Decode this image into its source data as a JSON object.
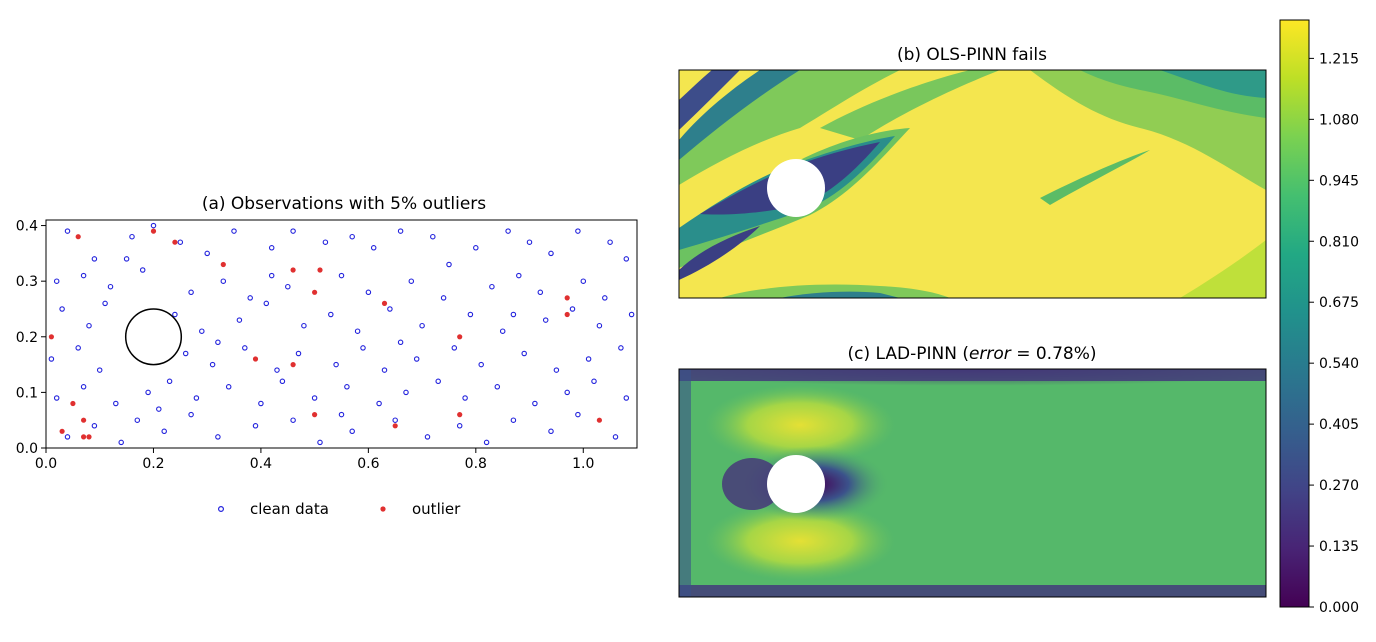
{
  "chart_data": [
    {
      "type": "scatter",
      "title": "(a) Observations with 5% outliers",
      "xlim": [
        0.0,
        1.1
      ],
      "ylim": [
        0.0,
        0.41
      ],
      "xticks": [
        "0.0",
        "0.2",
        "0.4",
        "0.6",
        "0.8",
        "1.0"
      ],
      "yticks": [
        "0.0",
        "0.1",
        "0.2",
        "0.3",
        "0.4"
      ],
      "xlabel": "",
      "ylabel": "",
      "legend_position": "bottom",
      "series": [
        {
          "name": "clean data",
          "marker": "open-circle",
          "color": "#2222dd",
          "points": [
            [
              0.04,
              0.39
            ],
            [
              0.09,
              0.34
            ],
            [
              0.16,
              0.38
            ],
            [
              0.2,
              0.4
            ],
            [
              0.25,
              0.37
            ],
            [
              0.3,
              0.35
            ],
            [
              0.35,
              0.39
            ],
            [
              0.42,
              0.36
            ],
            [
              0.46,
              0.39
            ],
            [
              0.52,
              0.37
            ],
            [
              0.57,
              0.38
            ],
            [
              0.61,
              0.36
            ],
            [
              0.66,
              0.39
            ],
            [
              0.72,
              0.38
            ],
            [
              0.8,
              0.36
            ],
            [
              0.86,
              0.39
            ],
            [
              0.9,
              0.37
            ],
            [
              0.94,
              0.35
            ],
            [
              0.99,
              0.39
            ],
            [
              1.05,
              0.37
            ],
            [
              1.08,
              0.34
            ],
            [
              0.02,
              0.3
            ],
            [
              0.07,
              0.31
            ],
            [
              0.12,
              0.29
            ],
            [
              0.18,
              0.32
            ],
            [
              0.27,
              0.28
            ],
            [
              0.33,
              0.3
            ],
            [
              0.38,
              0.27
            ],
            [
              0.45,
              0.29
            ],
            [
              0.55,
              0.31
            ],
            [
              0.6,
              0.28
            ],
            [
              0.68,
              0.3
            ],
            [
              0.74,
              0.27
            ],
            [
              0.83,
              0.29
            ],
            [
              0.88,
              0.31
            ],
            [
              0.92,
              0.28
            ],
            [
              1.0,
              0.3
            ],
            [
              1.04,
              0.27
            ],
            [
              0.03,
              0.25
            ],
            [
              0.08,
              0.22
            ],
            [
              0.11,
              0.26
            ],
            [
              0.24,
              0.24
            ],
            [
              0.29,
              0.21
            ],
            [
              0.36,
              0.23
            ],
            [
              0.41,
              0.26
            ],
            [
              0.48,
              0.22
            ],
            [
              0.53,
              0.24
            ],
            [
              0.58,
              0.21
            ],
            [
              0.64,
              0.25
            ],
            [
              0.7,
              0.22
            ],
            [
              0.79,
              0.24
            ],
            [
              0.85,
              0.21
            ],
            [
              0.93,
              0.23
            ],
            [
              0.98,
              0.25
            ],
            [
              1.03,
              0.22
            ],
            [
              1.09,
              0.24
            ],
            [
              0.01,
              0.16
            ],
            [
              0.06,
              0.18
            ],
            [
              0.1,
              0.14
            ],
            [
              0.26,
              0.17
            ],
            [
              0.31,
              0.15
            ],
            [
              0.37,
              0.18
            ],
            [
              0.43,
              0.14
            ],
            [
              0.47,
              0.17
            ],
            [
              0.54,
              0.15
            ],
            [
              0.59,
              0.18
            ],
            [
              0.63,
              0.14
            ],
            [
              0.69,
              0.16
            ],
            [
              0.76,
              0.18
            ],
            [
              0.81,
              0.15
            ],
            [
              0.89,
              0.17
            ],
            [
              0.95,
              0.14
            ],
            [
              1.01,
              0.16
            ],
            [
              1.07,
              0.18
            ],
            [
              0.02,
              0.09
            ],
            [
              0.07,
              0.11
            ],
            [
              0.13,
              0.08
            ],
            [
              0.19,
              0.1
            ],
            [
              0.23,
              0.12
            ],
            [
              0.28,
              0.09
            ],
            [
              0.34,
              0.11
            ],
            [
              0.4,
              0.08
            ],
            [
              0.44,
              0.12
            ],
            [
              0.5,
              0.09
            ],
            [
              0.56,
              0.11
            ],
            [
              0.62,
              0.08
            ],
            [
              0.67,
              0.1
            ],
            [
              0.73,
              0.12
            ],
            [
              0.78,
              0.09
            ],
            [
              0.84,
              0.11
            ],
            [
              0.91,
              0.08
            ],
            [
              0.97,
              0.1
            ],
            [
              1.02,
              0.12
            ],
            [
              1.08,
              0.09
            ],
            [
              0.04,
              0.02
            ],
            [
              0.09,
              0.04
            ],
            [
              0.14,
              0.01
            ],
            [
              0.17,
              0.05
            ],
            [
              0.22,
              0.03
            ],
            [
              0.27,
              0.06
            ],
            [
              0.32,
              0.02
            ],
            [
              0.39,
              0.04
            ],
            [
              0.46,
              0.05
            ],
            [
              0.51,
              0.01
            ],
            [
              0.57,
              0.03
            ],
            [
              0.65,
              0.05
            ],
            [
              0.71,
              0.02
            ],
            [
              0.77,
              0.04
            ],
            [
              0.82,
              0.01
            ],
            [
              0.87,
              0.05
            ],
            [
              0.94,
              0.03
            ],
            [
              0.99,
              0.06
            ],
            [
              1.06,
              0.02
            ],
            [
              0.15,
              0.34
            ],
            [
              0.32,
              0.19
            ],
            [
              0.55,
              0.06
            ],
            [
              0.75,
              0.33
            ],
            [
              0.87,
              0.24
            ],
            [
              0.66,
              0.19
            ],
            [
              0.42,
              0.31
            ],
            [
              0.21,
              0.07
            ]
          ]
        },
        {
          "name": "outlier",
          "marker": "filled-circle",
          "color": "#e03030",
          "points": [
            [
              0.01,
              0.2
            ],
            [
              0.06,
              0.38
            ],
            [
              0.2,
              0.39
            ],
            [
              0.24,
              0.37
            ],
            [
              0.33,
              0.33
            ],
            [
              0.46,
              0.32
            ],
            [
              0.51,
              0.32
            ],
            [
              0.5,
              0.28
            ],
            [
              0.63,
              0.26
            ],
            [
              0.39,
              0.16
            ],
            [
              0.46,
              0.15
            ],
            [
              0.77,
              0.2
            ],
            [
              0.97,
              0.27
            ],
            [
              0.97,
              0.24
            ],
            [
              0.05,
              0.08
            ],
            [
              0.03,
              0.03
            ],
            [
              0.07,
              0.05
            ],
            [
              0.07,
              0.02
            ],
            [
              0.08,
              0.02
            ],
            [
              0.5,
              0.06
            ],
            [
              0.65,
              0.04
            ],
            [
              0.77,
              0.06
            ],
            [
              1.03,
              0.05
            ]
          ]
        }
      ],
      "annotations": [
        {
          "type": "circle-obstacle",
          "center": [
            0.2,
            0.2
          ],
          "radius": 0.05
        }
      ]
    },
    {
      "type": "heatmap",
      "title": "(b) OLS-PINN fails",
      "colormap": "viridis (filled contour)",
      "value_range": [
        0.0,
        1.3
      ],
      "axes_visible": false
    },
    {
      "type": "heatmap",
      "title_prefix": "(c) LAD-PINN (",
      "title_math": "error",
      "title_suffix": " = 0.78%)",
      "colormap": "viridis",
      "value_range": [
        0.0,
        1.3
      ],
      "axes_visible": false
    }
  ],
  "colorbar": {
    "colormap": "viridis",
    "range": [
      0.0,
      1.3
    ],
    "ticks": [
      "0.000",
      "0.135",
      "0.270",
      "0.405",
      "0.540",
      "0.675",
      "0.810",
      "0.945",
      "1.080",
      "1.215"
    ],
    "tick_values": [
      0.0,
      0.135,
      0.27,
      0.405,
      0.54,
      0.675,
      0.81,
      0.945,
      1.08,
      1.215
    ]
  }
}
